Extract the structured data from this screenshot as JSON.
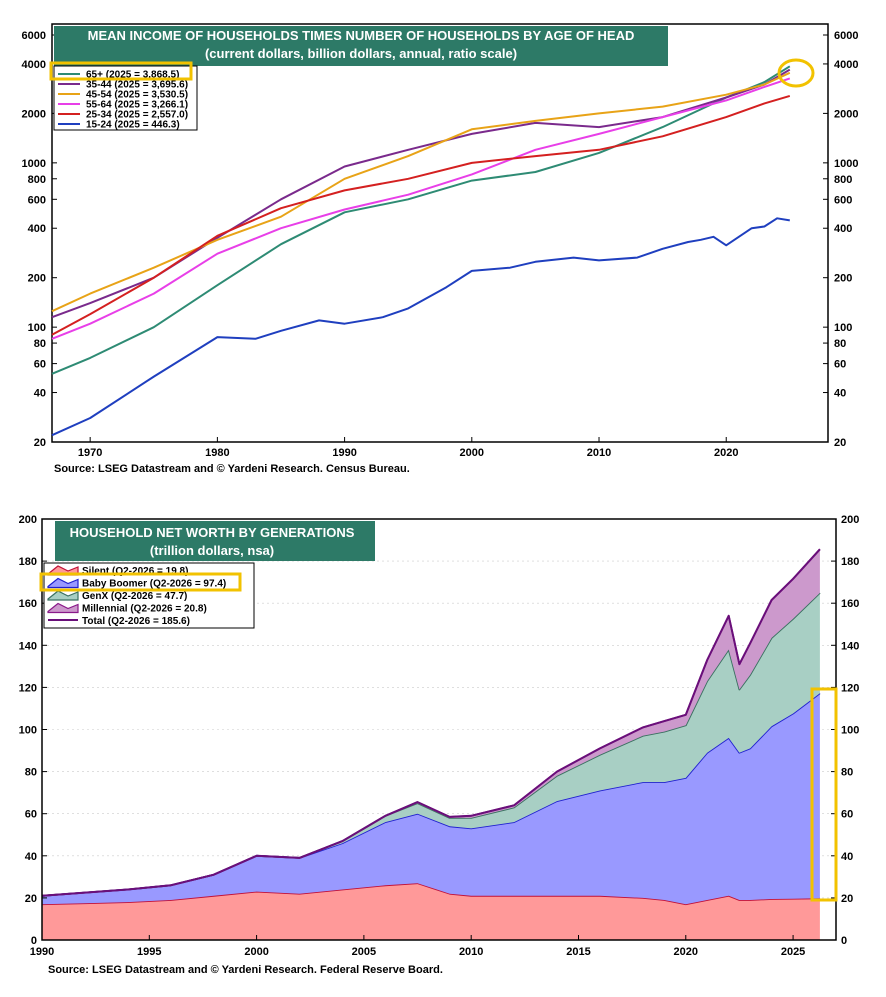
{
  "chart_data": [
    {
      "type": "line",
      "title": "MEAN INCOME OF HOUSEHOLDS TIMES NUMBER OF HOUSEHOLDS BY AGE OF HEAD",
      "subtitle": "(current dollars, billion dollars, annual, ratio scale)",
      "source": "Source: LSEG Datastream and © Yardeni Research. Census Bureau.",
      "y_scale": "log",
      "xlim": [
        1967,
        2028
      ],
      "ylim": [
        20,
        7000
      ],
      "x_ticks": [
        "1970",
        "1980",
        "1990",
        "2000",
        "2010",
        "2020"
      ],
      "y_ticks": [
        "20",
        "40",
        "60",
        "80",
        "100",
        "200",
        "400",
        "600",
        "800",
        "1000",
        "2000",
        "4000",
        "6000"
      ],
      "legend_position": "top-left",
      "series": [
        {
          "name": "65+ (2025 = 3,868.5)",
          "color": "#2e8b74",
          "x": [
            1967,
            1970,
            1975,
            1980,
            1985,
            1990,
            1995,
            2000,
            2005,
            2010,
            2015,
            2020,
            2023,
            2025
          ],
          "y": [
            52,
            65,
            100,
            180,
            320,
            500,
            600,
            780,
            880,
            1150,
            1650,
            2500,
            3100,
            3868.5
          ]
        },
        {
          "name": "35-44 (2025 = 3,695.6)",
          "color": "#7a2a8c",
          "x": [
            1967,
            1970,
            1975,
            1980,
            1985,
            1990,
            1995,
            2000,
            2005,
            2010,
            2015,
            2020,
            2023,
            2025
          ],
          "y": [
            115,
            140,
            200,
            350,
            600,
            950,
            1200,
            1500,
            1750,
            1650,
            1900,
            2500,
            3000,
            3695.6
          ]
        },
        {
          "name": "45-54 (2025 = 3,530.5)",
          "color": "#e8a317",
          "x": [
            1967,
            1970,
            1975,
            1980,
            1985,
            1990,
            1995,
            2000,
            2005,
            2010,
            2015,
            2020,
            2023,
            2025
          ],
          "y": [
            125,
            160,
            230,
            340,
            470,
            800,
            1100,
            1600,
            1800,
            2000,
            2200,
            2600,
            3000,
            3530.5
          ]
        },
        {
          "name": "55-64 (2025 = 3,266.1)",
          "color": "#e83fe8",
          "x": [
            1967,
            1970,
            1975,
            1980,
            1985,
            1990,
            1995,
            2000,
            2005,
            2010,
            2015,
            2020,
            2023,
            2025
          ],
          "y": [
            85,
            105,
            160,
            280,
            400,
            520,
            640,
            850,
            1200,
            1500,
            1900,
            2400,
            2900,
            3266.1
          ]
        },
        {
          "name": "25-34 (2025 = 2,557.0)",
          "color": "#d42020",
          "x": [
            1967,
            1970,
            1975,
            1980,
            1985,
            1990,
            1995,
            2000,
            2005,
            2010,
            2015,
            2020,
            2023,
            2025
          ],
          "y": [
            90,
            120,
            200,
            360,
            530,
            680,
            800,
            1000,
            1100,
            1200,
            1450,
            1900,
            2300,
            2557.0
          ]
        },
        {
          "name": "15-24 (2025 = 446.3)",
          "color": "#1f3fbf",
          "x": [
            1967,
            1970,
            1975,
            1980,
            1983,
            1985,
            1988,
            1990,
            1993,
            1995,
            1998,
            2000,
            2003,
            2005,
            2008,
            2010,
            2013,
            2015,
            2017,
            2018,
            2019,
            2020,
            2022,
            2023,
            2024,
            2025
          ],
          "y": [
            22,
            28,
            50,
            87,
            85,
            95,
            110,
            105,
            115,
            130,
            175,
            220,
            230,
            250,
            265,
            255,
            265,
            300,
            330,
            340,
            355,
            315,
            400,
            410,
            460,
            446.3
          ]
        }
      ]
    },
    {
      "type": "area",
      "stacked": true,
      "title": "HOUSEHOLD NET WORTH BY GENERATIONS",
      "subtitle": "(trillion dollars, nsa)",
      "source": "Source: LSEG Datastream and © Yardeni Research. Federal Reserve Board.",
      "xlim": [
        1990,
        2027
      ],
      "ylim": [
        0,
        200
      ],
      "x_ticks": [
        "1990",
        "1995",
        "2000",
        "2005",
        "2010",
        "2015",
        "2020",
        "2025"
      ],
      "y_ticks": [
        "0",
        "20",
        "40",
        "60",
        "80",
        "100",
        "120",
        "140",
        "160",
        "180",
        "200"
      ],
      "legend_position": "top-left",
      "x": [
        1990,
        1992,
        1994,
        1996,
        1998,
        2000,
        2002,
        2004,
        2006,
        2007.5,
        2009,
        2010,
        2012,
        2014,
        2016,
        2018,
        2019,
        2020,
        2021,
        2022,
        2022.5,
        2023,
        2024,
        2025,
        2026.25
      ],
      "series": [
        {
          "name": "Silent (Q2-2026 = 19.8)",
          "color": "#ff9999",
          "line": "#c0103a",
          "values": [
            17,
            17.5,
            18,
            19,
            21,
            23,
            22,
            24,
            26,
            27,
            22,
            21,
            21,
            21,
            21,
            20,
            19,
            17,
            19,
            21,
            19,
            19,
            19.5,
            19.6,
            19.8
          ]
        },
        {
          "name": "Baby Boomer (Q2-2026 = 97.4)",
          "color": "#9999ff",
          "line": "#2020d0",
          "values": [
            4,
            5,
            6,
            7,
            10,
            17,
            17,
            22,
            30,
            33,
            32,
            32,
            35,
            45,
            50,
            55,
            56,
            60,
            70,
            75,
            70,
            72,
            82,
            88,
            97.4
          ]
        },
        {
          "name": "GenX (Q2-2026 = 47.7)",
          "color": "#a8cfc4",
          "line": "#3a7060",
          "values": [
            0,
            0,
            0,
            0,
            0,
            0,
            0,
            1,
            3,
            5,
            4,
            5,
            7,
            12,
            17,
            22,
            24,
            25,
            34,
            42,
            30,
            35,
            42,
            45,
            47.7
          ]
        },
        {
          "name": "Millennial (Q2-2026 = 20.8)",
          "color": "#cc99cc",
          "line": "#8a1a8a",
          "values": [
            0,
            0,
            0,
            0,
            0,
            0,
            0,
            0,
            0,
            0.5,
            0.5,
            1,
            1,
            2,
            3,
            4,
            5,
            5,
            10,
            16,
            12,
            15,
            18,
            19,
            20.8
          ]
        }
      ],
      "total": {
        "name": "Total (Q2-2026 = 185.6)",
        "color": "#6a0f7a",
        "values": [
          21,
          22.5,
          24,
          26,
          31,
          40,
          39,
          47,
          59,
          65.5,
          58.5,
          59,
          64,
          80,
          91,
          101,
          104,
          107,
          133,
          154,
          131,
          141,
          161.5,
          171.6,
          185.6
        ]
      }
    }
  ]
}
